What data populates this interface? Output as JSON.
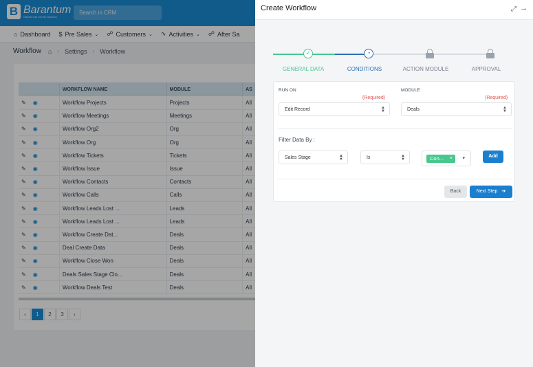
{
  "app": {
    "logo_text": "Barantum",
    "logo_subtext": "Official Call Center Solution",
    "search_placeholder": "Search in CRM"
  },
  "nav": {
    "items": [
      {
        "label": "Dashboard",
        "icon": "home-icon",
        "glyph": "⌂",
        "chevron": false
      },
      {
        "label": "Pre Sales",
        "icon": "dollar-icon",
        "glyph": "$",
        "chevron": true
      },
      {
        "label": "Customers",
        "icon": "users-icon",
        "glyph": "☍",
        "chevron": true
      },
      {
        "label": "Activities",
        "icon": "activity-icon",
        "glyph": "∿",
        "chevron": true
      },
      {
        "label": "After Sa",
        "icon": "users-icon",
        "glyph": "☍",
        "chevron": false
      }
    ]
  },
  "breadcrumb": {
    "title": "Workflow",
    "items": [
      "Settings",
      "Workflow"
    ]
  },
  "table": {
    "columns": [
      "",
      "WORKFLOW NAME",
      "MODULE",
      "AS"
    ],
    "rows": [
      {
        "name": "Workflow Projects",
        "module": "Projects",
        "as": "All"
      },
      {
        "name": "Workflow Meetings",
        "module": "Meetings",
        "as": "All"
      },
      {
        "name": "Workflow Org2",
        "module": "Org",
        "as": "All"
      },
      {
        "name": "Workflow Org",
        "module": "Org",
        "as": "All"
      },
      {
        "name": "Workflow Tickets",
        "module": "Tickets",
        "as": "All"
      },
      {
        "name": "Workflow Issue",
        "module": "Issue",
        "as": "All"
      },
      {
        "name": "Workflow Contacts",
        "module": "Contacts",
        "as": "All"
      },
      {
        "name": "Workflow Calls",
        "module": "Calls",
        "as": "All"
      },
      {
        "name": "Workflow Leads Lost ...",
        "module": "Leads",
        "as": "All"
      },
      {
        "name": "Workflow Leads Lost ...",
        "module": "Leads",
        "as": "All"
      },
      {
        "name": "Workflow Create Dat...",
        "module": "Deals",
        "as": "All"
      },
      {
        "name": "Deal Create Data",
        "module": "Deals",
        "as": "All"
      },
      {
        "name": "Workflow Close Won",
        "module": "Deals",
        "as": "All"
      },
      {
        "name": "Deals Sales Stage Clo...",
        "module": "Deals",
        "as": "All"
      },
      {
        "name": "Workflow Deals Test",
        "module": "Deals",
        "as": "All"
      }
    ]
  },
  "pagination": {
    "prev": "‹",
    "pages": [
      "1",
      "2",
      "3"
    ],
    "next": "›",
    "current": "1"
  },
  "drawer": {
    "title": "Create Workflow",
    "steps": [
      {
        "label": "GENERAL DATA",
        "state": "done"
      },
      {
        "label": "CONDITIONS",
        "state": "current"
      },
      {
        "label": "ACTION MODULE",
        "state": "locked"
      },
      {
        "label": "APPROVAL",
        "state": "locked"
      }
    ],
    "colors": {
      "done": "#48c78e",
      "current": "#2a6fb5",
      "locked": "#9aa3ad",
      "primary": "#1b7fcf",
      "required": "#e5534b"
    },
    "form": {
      "run_on_label": "RUN ON",
      "run_on_required": "(Required)",
      "run_on_value": "Edit Record",
      "module_label": "MODULE",
      "module_required": "(Required)",
      "module_value": "Deals",
      "filter_label": "Filter Data By :",
      "filter_field": "Sales Stage",
      "filter_operator": "Is",
      "filter_tag": "Con...",
      "add_label": "Add",
      "back_label": "Back",
      "next_label": "Next Step"
    }
  }
}
